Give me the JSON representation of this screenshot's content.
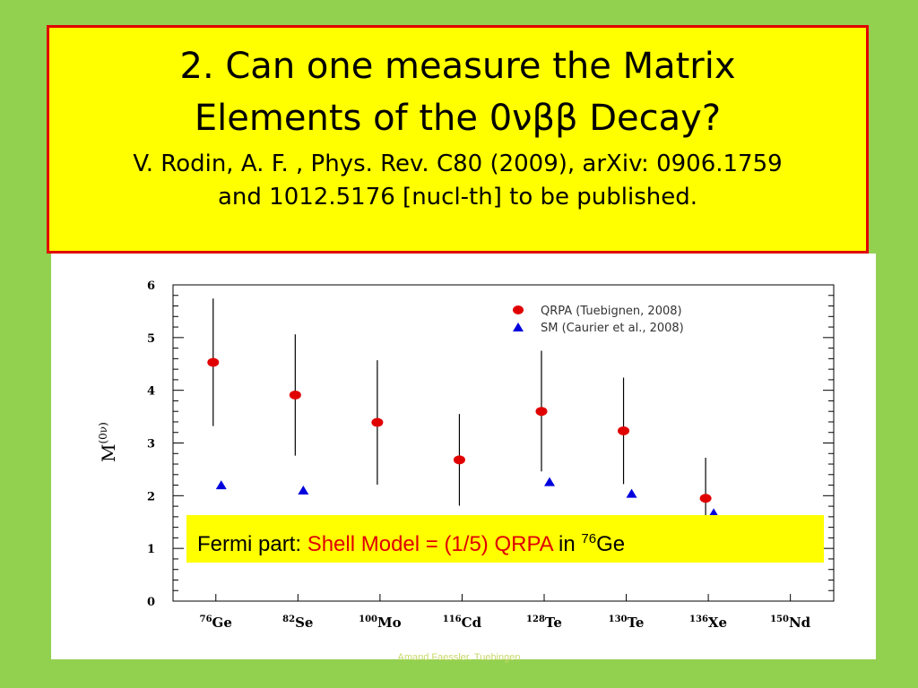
{
  "title": {
    "line1": "2. Can one measure the Matrix",
    "line2": "Elements of the 0νββ Decay?",
    "sub1": "V. Rodin, A. F. , Phys. Rev. C80 (2009), arXiv: 0906.1759",
    "sub2": "and 1012.5176 [nucl-th] to be published."
  },
  "note": {
    "prefix": "Fermi part: ",
    "highlight": "Shell Model = (1/5) QRPA",
    "suffix": " in ",
    "isotope_mass": "76",
    "isotope_symbol": "Ge"
  },
  "footer_text": "Amand Faessler, Tuebingen",
  "colors": {
    "background": "#92d050",
    "title_box": "#ffff00",
    "title_border": "#e00000",
    "qrpa": "#e00000",
    "sm": "#0000dd"
  },
  "chart_data": {
    "type": "scatter",
    "ylabel": "M",
    "ylabel_sup": "(0ν)",
    "ylim": [
      0,
      6
    ],
    "yticks": [
      "0",
      "1",
      "2",
      "3",
      "4",
      "5",
      "6"
    ],
    "categories": [
      {
        "mass": "76",
        "symbol": "Ge"
      },
      {
        "mass": "82",
        "symbol": "Se"
      },
      {
        "mass": "100",
        "symbol": "Mo"
      },
      {
        "mass": "116",
        "symbol": "Cd"
      },
      {
        "mass": "128",
        "symbol": "Te"
      },
      {
        "mass": "130",
        "symbol": "Te"
      },
      {
        "mass": "136",
        "symbol": "Xe"
      },
      {
        "mass": "150",
        "symbol": "Nd"
      }
    ],
    "legend_position": "top-right",
    "series": [
      {
        "name": "QRPA (Tuebignen, 2008)",
        "marker": "circle",
        "values": [
          4.53,
          3.91,
          3.39,
          2.68,
          3.6,
          3.23,
          1.95
        ],
        "err_low": [
          3.32,
          2.76,
          2.21,
          1.81,
          2.46,
          2.22,
          1.18
        ],
        "err_high": [
          5.74,
          5.06,
          4.57,
          3.55,
          4.75,
          4.24,
          2.72
        ]
      },
      {
        "name": "SM (Caurier et al., 2008)",
        "marker": "triangle",
        "values": [
          2.19,
          2.09,
          null,
          null,
          2.25,
          2.03,
          1.66
        ]
      }
    ]
  }
}
